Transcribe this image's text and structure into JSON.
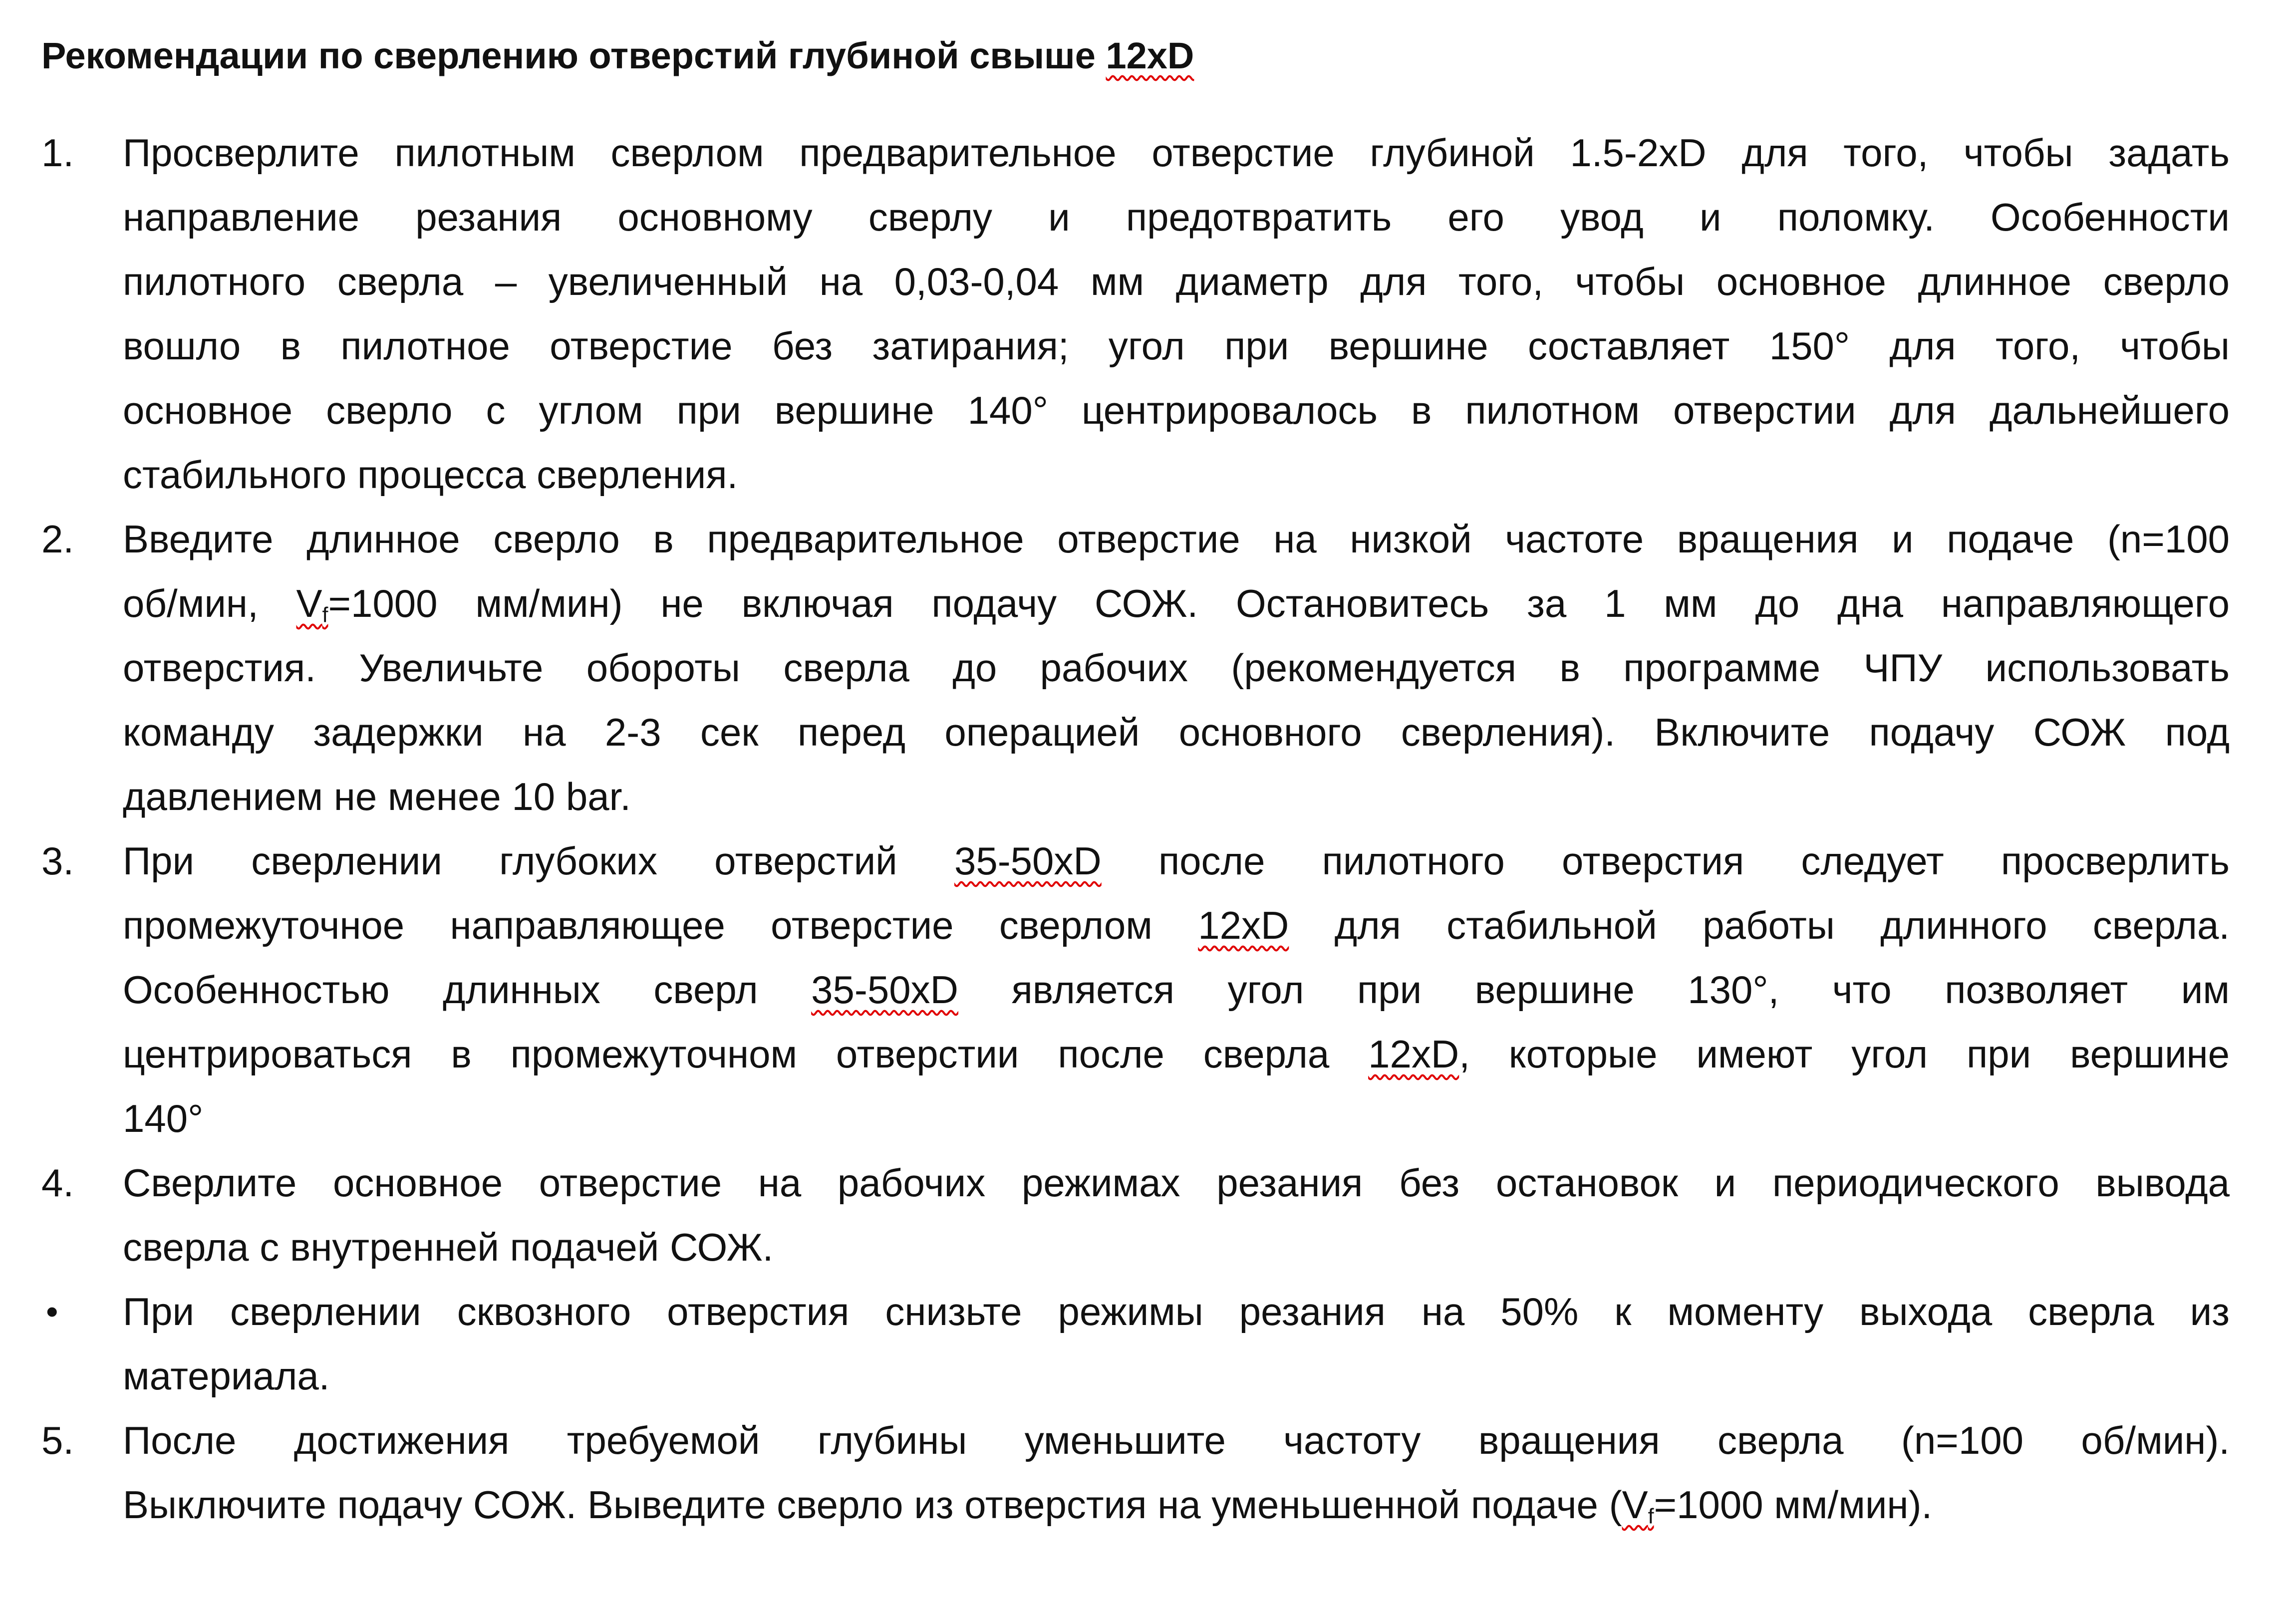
{
  "document": {
    "title": "Рекомендации по сверлению отверстий глубиной свыше 12xD",
    "items": [
      {
        "marker": "1.",
        "lines": [
          "Просверлите пилотным сверлом предварительное отверстие глубиной 1.5-2xD для того, чтобы задать",
          "направление резания основному сверлу и предотвратить его увод и поломку. Особенности",
          "пилотного сверла – увеличенный на 0,03-0,04 мм диаметр для того, чтобы основное длинное сверло",
          "вошло в пилотное отверстие без затирания; угол при вершине составляет 150° для того, чтобы",
          "основное сверло с углом при вершине 140° центрировалось в пилотном отверстии для дальнейшего",
          "стабильного процесса сверления."
        ]
      },
      {
        "marker": "2.",
        "lines": [
          "Введите длинное сверло в предварительное отверстие на низкой частоте вращения и подаче (n=100",
          "об/мин, Vf=1000 мм/мин) не включая подачу СОЖ. Остановитесь за 1 мм до дна направляющего",
          "отверстия. Увеличьте обороты сверла до рабочих (рекомендуется в программе ЧПУ использовать",
          "команду задержки на 2-3 сек перед операцией основного сверления). Включите подачу СОЖ под",
          "давлением не менее 10 bar."
        ]
      },
      {
        "marker": "3.",
        "lines": [
          "При сверлении глубоких отверстий 35-50xD после пилотного отверстия следует просверлить",
          "промежуточное направляющее отверстие сверлом 12xD для стабильной работы длинного сверла.",
          "Особенностью длинных сверл 35-50xD является угол при вершине 130°, что позволяет им",
          "центрироваться в промежуточном отверстии после сверла 12xD, которые имеют угол при вершине",
          "140°"
        ]
      },
      {
        "marker": "4.",
        "lines": [
          "Сверлите основное отверстие на рабочих режимах резания без остановок и периодического вывода",
          "сверла с внутренней подачей СОЖ."
        ]
      },
      {
        "marker": "•",
        "lines": [
          "При сверлении сквозного отверстия снизьте режимы резания на 50% к моменту выхода сверла из",
          "материала."
        ]
      },
      {
        "marker": "5.",
        "lines": [
          "После достижения требуемой глубины уменьшите частоту вращения сверла (n=100 об/мин).",
          "Выключите подачу СОЖ. Выведите сверло из отверстия на уменьшенной подаче (Vf=1000 мм/мин)."
        ]
      }
    ]
  }
}
